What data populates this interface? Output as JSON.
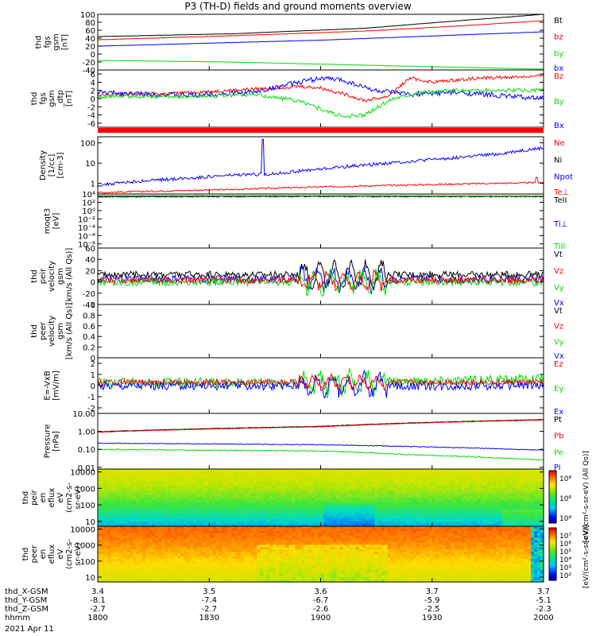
{
  "title": "P3 (TH-D) fields and ground moments overview",
  "date_label": "2021 Apr 11",
  "colors": {
    "black": "#000000",
    "red": "#ff0000",
    "green": "#00dd00",
    "blue": "#0000ff"
  },
  "chart_data": [
    {
      "type": "line",
      "ylabel": [
        "thd",
        "fgs",
        "gsm",
        "[nT]"
      ],
      "yticks": [
        100,
        80,
        60,
        40,
        20,
        0,
        -20,
        -40
      ],
      "ylim": [
        -40,
        100
      ],
      "legend": [
        [
          "Bt",
          "black"
        ],
        [
          "bz",
          "red"
        ],
        [
          "by",
          "green"
        ],
        [
          "bx",
          "blue"
        ]
      ],
      "series": [
        {
          "name": "Bt",
          "color": "black",
          "x": [
            0,
            0.3,
            0.6,
            0.8,
            1
          ],
          "y": [
            44,
            51,
            65,
            83,
            100
          ],
          "noise": 0.3
        },
        {
          "name": "bz",
          "color": "red",
          "x": [
            0,
            0.3,
            0.6,
            0.8,
            1
          ],
          "y": [
            36,
            46,
            58,
            70,
            84
          ],
          "noise": 0.3
        },
        {
          "name": "bx",
          "color": "blue",
          "x": [
            0,
            0.5,
            1
          ],
          "y": [
            20,
            35,
            56
          ],
          "noise": 0.3
        },
        {
          "name": "by",
          "color": "green",
          "x": [
            0,
            0.3,
            0.6,
            1
          ],
          "y": [
            -16,
            -20,
            -28,
            -38
          ],
          "noise": 0.3
        }
      ]
    },
    {
      "type": "line",
      "ylabel": [
        "thd",
        "fgs",
        "gsm",
        "_dtp",
        "[nT]"
      ],
      "yticks": [
        6,
        4,
        2,
        0,
        -2,
        -4,
        -6
      ],
      "ylim": [
        -7,
        7
      ],
      "legend": [
        [
          "Bz",
          "red"
        ],
        [
          "By",
          "green"
        ],
        [
          "Bx",
          "blue"
        ]
      ],
      "series": [
        {
          "name": "Bz",
          "color": "red",
          "x": [
            0,
            0.15,
            0.3,
            0.45,
            0.5,
            0.55,
            0.6,
            0.65,
            0.7,
            0.75,
            0.85,
            1
          ],
          "y": [
            1,
            1.2,
            2,
            3,
            2.6,
            1.2,
            -0.5,
            0.5,
            5,
            4,
            5,
            5.5
          ],
          "noise": 0.4
        },
        {
          "name": "Bx",
          "color": "blue",
          "x": [
            0,
            0.2,
            0.35,
            0.45,
            0.5,
            0.55,
            0.62,
            0.7,
            0.8,
            1
          ],
          "y": [
            1.5,
            0.8,
            1.5,
            4,
            5,
            4.5,
            2,
            1,
            1.5,
            0
          ],
          "noise": 0.6
        },
        {
          "name": "By",
          "color": "green",
          "x": [
            0,
            0.2,
            0.35,
            0.45,
            0.55,
            0.6,
            0.66,
            0.72,
            0.8,
            1
          ],
          "y": [
            0.5,
            0.5,
            1,
            -0.5,
            -4.5,
            -4,
            0,
            1.5,
            2,
            2
          ],
          "noise": 0.5
        }
      ]
    },
    {
      "type": "line",
      "ylabel": [
        "Density",
        "[1/cc]",
        "[cm-3]"
      ],
      "yscale": "log",
      "yticks": [
        100,
        10,
        1
      ],
      "ylim": [
        0.3,
        200
      ],
      "legend": [
        [
          "Ne",
          "red"
        ],
        [
          "Ni",
          "black"
        ],
        [
          "Npot",
          "blue"
        ],
        [
          "Te⊥",
          "red"
        ]
      ],
      "series": [
        {
          "name": "Npot",
          "color": "blue",
          "x": [
            0,
            0.1,
            0.2,
            0.3,
            0.4,
            0.5,
            0.6,
            0.7,
            0.8,
            0.9,
            1
          ],
          "y": [
            0.8,
            1.3,
            1.8,
            2.5,
            3,
            5,
            8,
            12,
            18,
            28,
            55
          ],
          "noise": 0.08,
          "spike": [
            0.37,
            150
          ]
        },
        {
          "name": "Ne",
          "color": "red",
          "x": [
            0,
            0.3,
            0.6,
            1
          ],
          "y": [
            0.35,
            0.5,
            0.75,
            1.1
          ],
          "noise": 0.04,
          "spike": [
            0.985,
            2.0
          ]
        }
      ]
    },
    {
      "type": "line",
      "ylabel": [
        "moqt3",
        "[eV]"
      ],
      "yscale": "log",
      "yticks": [
        "10⁴",
        "10²",
        "10⁰",
        "10⁻²",
        "10⁻⁴",
        "10⁻⁶",
        "10⁻⁸"
      ],
      "ylim": [
        1e-09,
        10000.0
      ],
      "legend": [
        [
          "TeII",
          "black"
        ],
        [
          "Ti⊥",
          "blue"
        ],
        [
          "TiII",
          "green"
        ]
      ],
      "series": [
        {
          "name": "Te",
          "color": "black",
          "x": [
            0,
            0.5,
            1
          ],
          "y": [
            2000,
            2500,
            2200
          ],
          "noise": 0.1
        },
        {
          "name": "Ti",
          "color": "blue",
          "x": [
            0,
            0.5,
            1
          ],
          "y": [
            3000,
            3200,
            2800
          ],
          "noise": 0.05
        },
        {
          "name": "Te2",
          "color": "red",
          "x": [
            0,
            0.5,
            1
          ],
          "y": [
            4000,
            4000,
            3500
          ],
          "noise": 0.03
        },
        {
          "name": "Ti2",
          "color": "green",
          "x": [
            0,
            0.5,
            1
          ],
          "y": [
            3500,
            3600,
            3000
          ],
          "noise": 0.03
        }
      ]
    },
    {
      "type": "line",
      "ylabel": [
        "thd",
        "peir",
        "velocity",
        "gsm",
        "[km/s (All Qs)]"
      ],
      "yticks": [
        60,
        40,
        20,
        0,
        -20,
        -40
      ],
      "ylim": [
        -40,
        60
      ],
      "legend": [
        [
          "Vt",
          "black"
        ],
        [
          "Vz",
          "red"
        ],
        [
          "Vy",
          "green"
        ],
        [
          "Vx",
          "blue"
        ]
      ],
      "series": [
        {
          "name": "Vt",
          "color": "black",
          "x": [
            0,
            0.5,
            1
          ],
          "y": [
            13,
            13,
            13
          ],
          "noise": 6,
          "burst": [
            0.45,
            0.65,
            25
          ]
        },
        {
          "name": "Vx",
          "color": "blue",
          "x": [
            0,
            0.5,
            1
          ],
          "y": [
            5,
            5,
            5
          ],
          "noise": 7,
          "burst": [
            0.45,
            0.65,
            20
          ]
        },
        {
          "name": "Vy",
          "color": "green",
          "x": [
            0,
            0.5,
            1
          ],
          "y": [
            0,
            0,
            0
          ],
          "noise": 7,
          "burst": [
            0.45,
            0.65,
            20
          ]
        },
        {
          "name": "Vz",
          "color": "red",
          "x": [
            0,
            0.5,
            1
          ],
          "y": [
            3,
            3,
            3
          ],
          "noise": 6,
          "burst": [
            0.45,
            0.65,
            15
          ]
        }
      ]
    },
    {
      "type": "line",
      "ylabel": [
        "thd",
        "peer",
        "velocity",
        "gsm",
        "[km/s (All Qs)]"
      ],
      "yticks": [
        1.0,
        0.8,
        0.6,
        0.4,
        0.2,
        0.0
      ],
      "ylim": [
        0,
        1
      ],
      "legend": [
        [
          "Vt",
          "black"
        ],
        [
          "Vz",
          "red"
        ],
        [
          "Vy",
          "green"
        ],
        [
          "Vx",
          "blue"
        ]
      ],
      "series": []
    },
    {
      "type": "line",
      "ylabel": [
        "E=-VxB",
        "[mV/m]"
      ],
      "yticks": [
        2,
        1,
        0,
        -1,
        -2
      ],
      "ylim": [
        -2.5,
        2.5
      ],
      "legend": [
        [
          "Ez",
          "red"
        ],
        [
          "Ey",
          "green"
        ],
        [
          "Ex",
          "blue"
        ]
      ],
      "series": [
        {
          "name": "Ey",
          "color": "green",
          "x": [
            0,
            0.5,
            1
          ],
          "y": [
            0.3,
            0.2,
            0.6
          ],
          "noise": 0.45,
          "burst": [
            0.45,
            0.65,
            1.0
          ]
        },
        {
          "name": "Ex",
          "color": "blue",
          "x": [
            0,
            0.5,
            1
          ],
          "y": [
            0,
            0,
            0
          ],
          "noise": 0.4,
          "burst": [
            0.45,
            0.65,
            1.0
          ]
        },
        {
          "name": "Ez",
          "color": "red",
          "x": [
            0,
            0.5,
            1
          ],
          "y": [
            0.3,
            0.3,
            0.3
          ],
          "noise": 0.25,
          "burst": [
            0.45,
            0.65,
            0.6
          ]
        }
      ]
    },
    {
      "type": "line",
      "ylabel": [
        "Pressure",
        "[nPa]"
      ],
      "yscale": "log",
      "yticks": [
        "10.00",
        "1.00",
        "0.10",
        "0.01"
      ],
      "ylim": [
        0.008,
        10
      ],
      "legend": [
        [
          "Pt",
          "black"
        ],
        [
          "Pb",
          "red"
        ],
        [
          "Pe",
          "green"
        ],
        [
          "Pi",
          "blue"
        ]
      ],
      "series": [
        {
          "name": "Pt",
          "color": "black",
          "x": [
            0,
            0.5,
            1
          ],
          "y": [
            0.95,
            1.9,
            4.5
          ],
          "noise": 0.01
        },
        {
          "name": "Pb",
          "color": "red",
          "x": [
            0,
            0.5,
            1
          ],
          "y": [
            0.9,
            1.8,
            4.3
          ],
          "noise": 0.01
        },
        {
          "name": "Pi",
          "color": "blue",
          "x": [
            0,
            0.5,
            1
          ],
          "y": [
            0.22,
            0.18,
            0.09
          ],
          "noise": 0.02
        },
        {
          "name": "Pe",
          "color": "green",
          "x": [
            0,
            0.5,
            0.7,
            1
          ],
          "y": [
            0.1,
            0.08,
            0.05,
            0.025
          ],
          "noise": 0.03
        }
      ]
    },
    {
      "type": "heatmap",
      "ylabel": [
        "thd",
        "peir",
        "en",
        "eflux",
        "eV",
        "(cm2-s-",
        "sr-eV)"
      ],
      "yscale": "log",
      "yticks": [
        "10000",
        "1000",
        "100",
        "10"
      ],
      "ylim": [
        5,
        15000
      ],
      "colorbar_ticks": [
        "10⁸",
        "10⁶",
        "10⁴"
      ],
      "colorbar_label": "[eV/(cm²-s-sr-eV) (All Qs)]",
      "palette": "peir"
    },
    {
      "type": "heatmap",
      "ylabel": [
        "thd",
        "peer",
        "en",
        "eflux",
        "eV",
        "(cm2-s-",
        "sr-eV)"
      ],
      "yscale": "log",
      "yticks": [
        "10000",
        "1000",
        "100",
        "10"
      ],
      "ylim": [
        5,
        15000
      ],
      "colorbar_ticks": [
        "10⁷",
        "10⁶",
        "10⁵",
        "10⁴",
        "10³",
        "10²"
      ],
      "colorbar_label": "[eV/(cm²-s-sr-eV)]",
      "palette": "peer"
    }
  ],
  "x_axis": {
    "tick_count": 5,
    "rows": [
      {
        "label": "thd_X-GSM",
        "values": [
          "3.4",
          "3.5",
          "3.6",
          "3.7",
          "3.7"
        ]
      },
      {
        "label": "thd_Y-GSM",
        "values": [
          "-8.1",
          "-7.4",
          "-6.7",
          "-5.9",
          "-5.1"
        ]
      },
      {
        "label": "thd_Z-GSM",
        "values": [
          "-2.7",
          "-2.7",
          "-2.6",
          "-2.5",
          "-2.3"
        ]
      },
      {
        "label": "hhmm",
        "values": [
          "1800",
          "1830",
          "1900",
          "1930",
          "2000"
        ]
      }
    ]
  }
}
